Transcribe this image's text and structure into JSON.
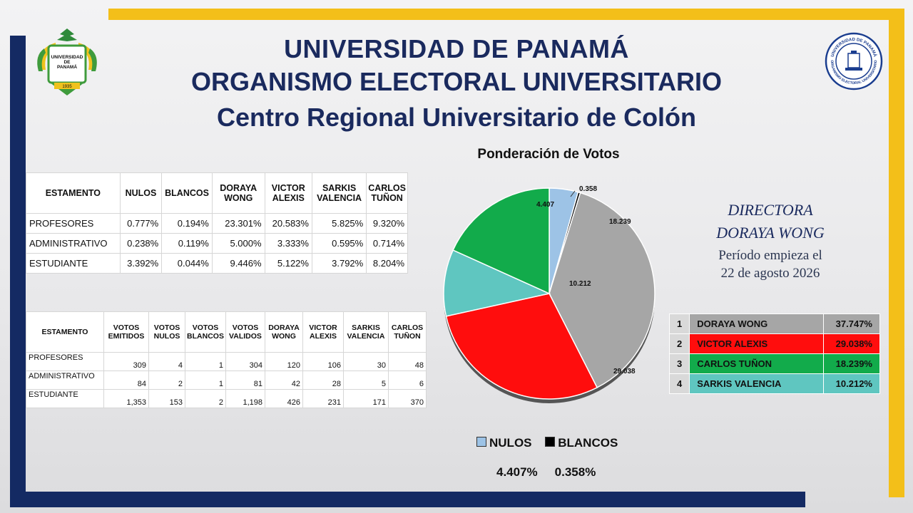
{
  "header": {
    "line1": "UNIVERSIDAD DE PANAMÁ",
    "line2": "ORGANISMO ELECTORAL UNIVERSITARIO",
    "line3": "Centro Regional Universitario de Colón"
  },
  "logos": {
    "left_text": [
      "UNIVERSIDAD",
      "DE",
      "PANAMÁ",
      "1935"
    ],
    "right_text": [
      "UNIVERSIDAD DE PANAMÁ",
      "ORGANISMO ELECTORAL UNIVERSITARIO"
    ]
  },
  "table1": {
    "headers": [
      "ESTAMENTO",
      "NULOS",
      "BLANCOS",
      "DORAYA WONG",
      "VICTOR ALEXIS",
      "SARKIS VALENCIA",
      "CARLOS TUÑON"
    ],
    "rows": [
      [
        "PROFESORES",
        "0.777%",
        "0.194%",
        "23.301%",
        "20.583%",
        "5.825%",
        "9.320%"
      ],
      [
        "ADMINISTRATIVO",
        "0.238%",
        "0.119%",
        "5.000%",
        "3.333%",
        "0.595%",
        "0.714%"
      ],
      [
        "ESTUDIANTE",
        "3.392%",
        "0.044%",
        "9.446%",
        "5.122%",
        "3.792%",
        "8.204%"
      ]
    ]
  },
  "table2": {
    "headers": [
      "ESTAMENTO",
      "VOTOS EMITIDOS",
      "VOTOS NULOS",
      "VOTOS BLANCOS",
      "VOTOS VALIDOS",
      "DORAYA WONG",
      "VICTOR ALEXIS",
      "SARKIS VALENCIA",
      "CARLOS TUÑON"
    ],
    "rows": [
      [
        "PROFESORES",
        "309",
        "4",
        "1",
        "304",
        "120",
        "106",
        "30",
        "48"
      ],
      [
        "ADMINISTRATIVO",
        "84",
        "2",
        "1",
        "81",
        "42",
        "28",
        "5",
        "6"
      ],
      [
        "ESTUDIANTE",
        "1,353",
        "153",
        "2",
        "1,198",
        "426",
        "231",
        "171",
        "370"
      ]
    ]
  },
  "chart_data": {
    "type": "pie",
    "title": "Ponderación de Votos",
    "slices": [
      {
        "label": "4.407",
        "value": 4.407,
        "color": "#9dc3e6"
      },
      {
        "label": "0.358",
        "value": 0.358,
        "color": "#000000"
      },
      {
        "label": "37.747",
        "value": 37.747,
        "color": "#a6a6a6"
      },
      {
        "label": "29.038",
        "value": 29.038,
        "color": "#ff0d0d"
      },
      {
        "label": "10.212",
        "value": 10.212,
        "color": "#5fc6c0"
      },
      {
        "label": "18.239",
        "value": 18.239,
        "color": "#12ab4b"
      }
    ]
  },
  "legend": {
    "items": [
      {
        "label": "NULOS",
        "color": "#9dc3e6"
      },
      {
        "label": "BLANCOS",
        "color": "#000000"
      }
    ],
    "values": [
      "4.407%",
      "0.358%"
    ]
  },
  "director": {
    "line1": "DIRECTORA",
    "line2": "DORAYA WONG",
    "line3": "Período empieza el",
    "line4": "22 de agosto 2026"
  },
  "ranking": [
    {
      "n": "1",
      "name": "DORAYA WONG",
      "pct": "37.747%",
      "color": "#a6a6a6"
    },
    {
      "n": "2",
      "name": "VICTOR ALEXIS",
      "pct": "29.038%",
      "color": "#ff0d0d"
    },
    {
      "n": "3",
      "name": "CARLOS TUÑON",
      "pct": "18.239%",
      "color": "#12ab4b"
    },
    {
      "n": "4",
      "name": "SARKIS VALENCIA",
      "pct": "10.212%",
      "color": "#5fc6c0"
    }
  ]
}
